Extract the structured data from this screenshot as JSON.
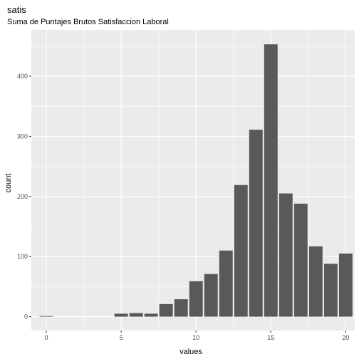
{
  "chart_data": {
    "type": "bar",
    "title": "satis",
    "subtitle": "Suma de Puntajes Brutos Satisfaccion Laboral",
    "xlabel": "values",
    "ylabel": "count",
    "x": [
      0,
      5,
      6,
      7,
      8,
      9,
      10,
      11,
      12,
      13,
      14,
      15,
      16,
      17,
      18,
      19,
      20
    ],
    "values": [
      1,
      5,
      6,
      5,
      21,
      29,
      59,
      71,
      110,
      219,
      311,
      453,
      205,
      188,
      117,
      88,
      105
    ],
    "xlim": [
      -1,
      20.6
    ],
    "ylim": [
      -23,
      477
    ],
    "x_ticks": [
      0,
      5,
      10,
      15,
      20
    ],
    "y_ticks": [
      0,
      100,
      200,
      300,
      400
    ],
    "grid": true,
    "colors": {
      "panel_background": "#ebebeb",
      "grid": "#ffffff",
      "bar_fill": "#595959",
      "tick_text": "#4d4d4d"
    }
  }
}
